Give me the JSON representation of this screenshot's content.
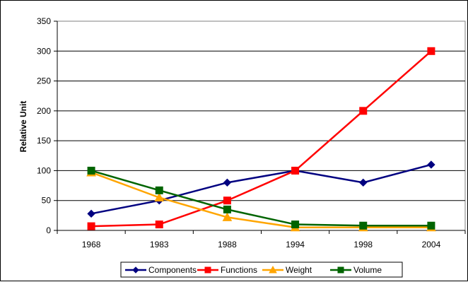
{
  "chart_data": {
    "type": "line",
    "categories": [
      "1968",
      "1983",
      "1988",
      "1994",
      "1998",
      "2004"
    ],
    "ylabel": "Relative Unit",
    "xlabel": "",
    "ylim": [
      0,
      350
    ],
    "yticks": [
      "0",
      "50",
      "100",
      "150",
      "200",
      "250",
      "300",
      "350"
    ],
    "grid": true,
    "legend_position": "bottom",
    "series": [
      {
        "name": "Components",
        "color": "#000080",
        "marker": "diamond",
        "values": [
          28,
          50,
          80,
          100,
          80,
          110
        ]
      },
      {
        "name": "Functions",
        "color": "#ff0000",
        "marker": "square",
        "values": [
          7,
          10,
          50,
          100,
          200,
          300
        ]
      },
      {
        "name": "Weight",
        "color": "#ffa500",
        "marker": "triangle",
        "values": [
          97,
          55,
          22,
          5,
          5,
          5
        ]
      },
      {
        "name": "Volume",
        "color": "#006400",
        "marker": "square",
        "values": [
          100,
          67,
          35,
          10,
          8,
          8
        ]
      }
    ]
  }
}
